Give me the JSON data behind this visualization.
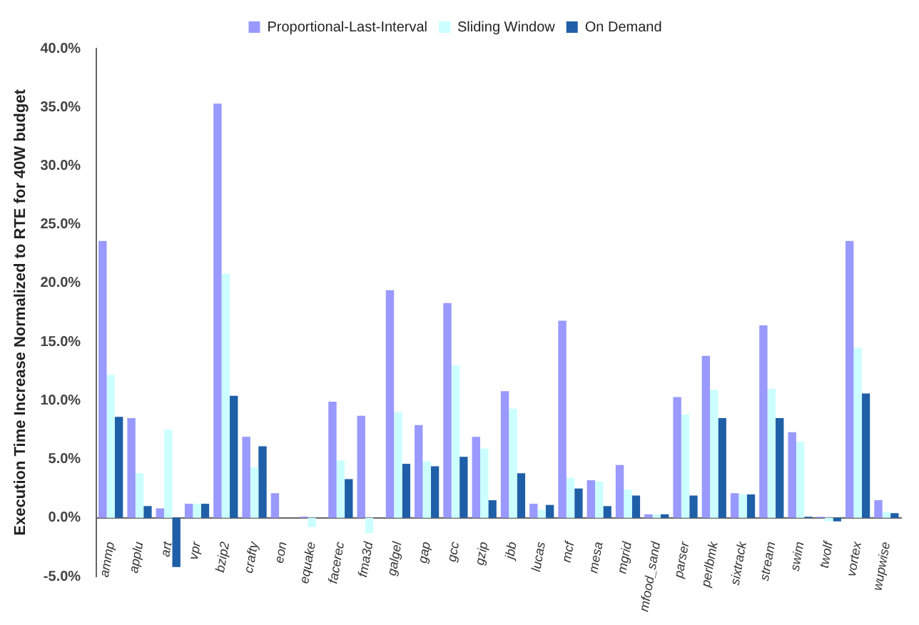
{
  "chart_data": {
    "type": "bar",
    "ylabel": "Execution Time Increase Normalized to RTE for 40W budget",
    "categories": [
      "ammp",
      "applu",
      "art",
      "vpr",
      "bzip2",
      "crafty",
      "eon",
      "equake",
      "facerec",
      "fma3d",
      "galgel",
      "gap",
      "gcc",
      "gzip",
      "jbb",
      "lucas",
      "mcf",
      "mesa",
      "mgrid",
      "mfood_sand",
      "parser",
      "perlbmk",
      "sixtrack",
      "stream",
      "swim",
      "twolf",
      "vortex",
      "wupwise"
    ],
    "series": [
      {
        "name": "Proportional-Last-Interval",
        "color": "#9999ff",
        "values": [
          23.6,
          8.5,
          0.8,
          1.2,
          35.3,
          6.9,
          2.1,
          0.1,
          9.9,
          8.7,
          19.4,
          7.9,
          18.3,
          6.9,
          10.8,
          1.2,
          16.8,
          3.2,
          4.5,
          0.3,
          10.3,
          13.8,
          2.1,
          16.4,
          7.3,
          0.1,
          23.6,
          1.5
        ]
      },
      {
        "name": "Sliding Window",
        "color": "#ccffff",
        "values": [
          12.2,
          3.8,
          7.5,
          1.2,
          20.8,
          4.3,
          0,
          -0.8,
          4.9,
          -1.3,
          9.0,
          4.8,
          13.0,
          5.9,
          9.3,
          0.7,
          3.4,
          3.1,
          2.4,
          0.3,
          8.8,
          10.9,
          2.0,
          11.0,
          6.5,
          -0.3,
          14.5,
          0.5
        ]
      },
      {
        "name": "On Demand",
        "color": "#1f5fa8",
        "values": [
          8.6,
          1.0,
          -4.2,
          1.2,
          10.4,
          6.1,
          0,
          0,
          3.3,
          0,
          4.6,
          4.4,
          5.2,
          1.5,
          3.8,
          1.1,
          2.5,
          1.0,
          1.9,
          0.3,
          1.9,
          8.5,
          2.0,
          8.5,
          0.1,
          -0.3,
          10.6,
          0.4
        ]
      }
    ],
    "ylim": [
      -5,
      40
    ],
    "yticks": [
      {
        "value": -5,
        "label": "-5.0%"
      },
      {
        "value": 0,
        "label": "0.0%"
      },
      {
        "value": 5,
        "label": "5.0%"
      },
      {
        "value": 10,
        "label": "10.0%"
      },
      {
        "value": 15,
        "label": "15.0%"
      },
      {
        "value": 20,
        "label": "20.0%"
      },
      {
        "value": 25,
        "label": "25.0%"
      },
      {
        "value": 30,
        "label": "30.0%"
      },
      {
        "value": 35,
        "label": "35.0%"
      },
      {
        "value": 40,
        "label": "40.0%"
      }
    ],
    "grid": false,
    "legend": "top"
  }
}
